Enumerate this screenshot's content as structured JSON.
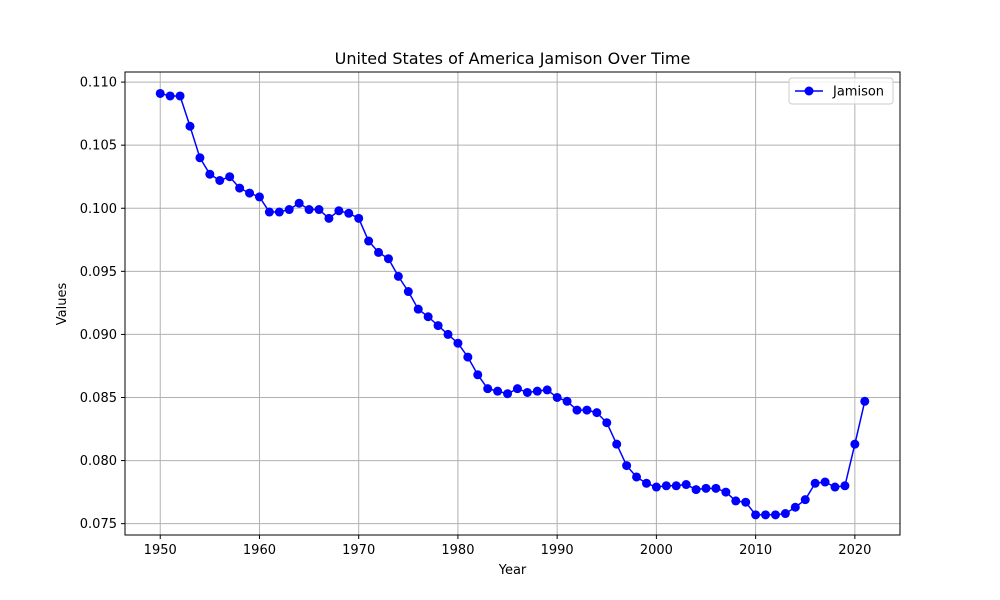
{
  "chart_data": {
    "type": "line",
    "title": "United States of America Jamison Over Time",
    "xlabel": "Year",
    "ylabel": "Values",
    "xlim": [
      1946.45,
      2024.55
    ],
    "ylim": [
      0.0741,
      0.1108
    ],
    "xticks": [
      1950,
      1960,
      1970,
      1980,
      1990,
      2000,
      2010,
      2020
    ],
    "yticks": [
      0.075,
      0.08,
      0.085,
      0.09,
      0.095,
      0.1,
      0.105,
      0.11
    ],
    "xtick_labels": [
      "1950",
      "1960",
      "1970",
      "1980",
      "1990",
      "2000",
      "2010",
      "2020"
    ],
    "ytick_labels": [
      "0.075",
      "0.080",
      "0.085",
      "0.090",
      "0.095",
      "0.100",
      "0.105",
      "0.110"
    ],
    "grid": true,
    "legend_position": "top-right",
    "series": [
      {
        "name": "Jamison",
        "color": "#0000ff",
        "marker": "circle",
        "x": [
          1950,
          1951,
          1952,
          1953,
          1954,
          1955,
          1956,
          1957,
          1958,
          1959,
          1960,
          1961,
          1962,
          1963,
          1964,
          1965,
          1966,
          1967,
          1968,
          1969,
          1970,
          1971,
          1972,
          1973,
          1974,
          1975,
          1976,
          1977,
          1978,
          1979,
          1980,
          1981,
          1982,
          1983,
          1984,
          1985,
          1986,
          1987,
          1988,
          1989,
          1990,
          1991,
          1992,
          1993,
          1994,
          1995,
          1996,
          1997,
          1998,
          1999,
          2000,
          2001,
          2002,
          2003,
          2004,
          2005,
          2006,
          2007,
          2008,
          2009,
          2010,
          2011,
          2012,
          2013,
          2014,
          2015,
          2016,
          2017,
          2018,
          2019,
          2020,
          2021
        ],
        "y": [
          0.1091,
          0.1089,
          0.1089,
          0.1065,
          0.104,
          0.1027,
          0.1022,
          0.1025,
          0.1016,
          0.1012,
          0.1009,
          0.0997,
          0.0997,
          0.0999,
          0.1004,
          0.0999,
          0.0999,
          0.0992,
          0.0998,
          0.0996,
          0.0992,
          0.0974,
          0.0965,
          0.096,
          0.0946,
          0.0934,
          0.092,
          0.0914,
          0.0907,
          0.09,
          0.0893,
          0.0882,
          0.0868,
          0.0857,
          0.0855,
          0.0853,
          0.0857,
          0.0854,
          0.0855,
          0.0856,
          0.085,
          0.0847,
          0.084,
          0.084,
          0.0838,
          0.083,
          0.0813,
          0.0796,
          0.0787,
          0.0782,
          0.0779,
          0.078,
          0.078,
          0.0781,
          0.0777,
          0.0778,
          0.0778,
          0.0775,
          0.0768,
          0.0767,
          0.0757,
          0.0757,
          0.0757,
          0.0758,
          0.0763,
          0.0769,
          0.0782,
          0.0783,
          0.0779,
          0.078,
          0.0813,
          0.0847
        ]
      }
    ]
  }
}
